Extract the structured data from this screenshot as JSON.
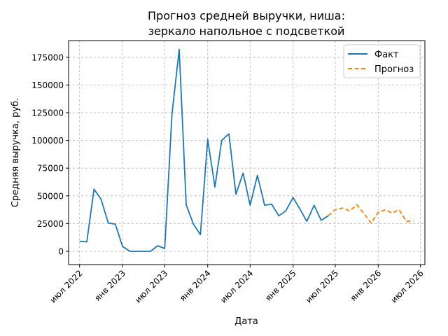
{
  "chart_data": {
    "type": "line",
    "title_line1": "Прогноз средней выручки, ниша:",
    "title_line2": "зеркало напольное с подсветкой",
    "xlabel": "Дата",
    "ylabel": "Средняя выручка, руб.",
    "x_domain": [
      "2022-05-15",
      "2026-07-20"
    ],
    "ylim": [
      -12000,
      190000
    ],
    "grid": true,
    "legend_position": "top-right",
    "x_ticks": [
      {
        "date": "2022-07-01",
        "label": "июл 2022"
      },
      {
        "date": "2023-01-01",
        "label": "янв 2023"
      },
      {
        "date": "2023-07-01",
        "label": "июл 2023"
      },
      {
        "date": "2024-01-01",
        "label": "янв 2024"
      },
      {
        "date": "2024-07-01",
        "label": "июл 2024"
      },
      {
        "date": "2025-01-01",
        "label": "янв 2025"
      },
      {
        "date": "2025-07-01",
        "label": "июл 2025"
      },
      {
        "date": "2026-01-01",
        "label": "янв 2026"
      },
      {
        "date": "2026-07-01",
        "label": "июл 2026"
      }
    ],
    "y_ticks": [
      {
        "value": 0,
        "label": "0"
      },
      {
        "value": 25000,
        "label": "25000"
      },
      {
        "value": 50000,
        "label": "50000"
      },
      {
        "value": 75000,
        "label": "75000"
      },
      {
        "value": 100000,
        "label": "100000"
      },
      {
        "value": 125000,
        "label": "125000"
      },
      {
        "value": 150000,
        "label": "150000"
      },
      {
        "value": 175000,
        "label": "175000"
      }
    ],
    "series": [
      {
        "name": "Факт",
        "color": "#1f77b4",
        "dash": "solid",
        "points": [
          [
            "2022-07-01",
            9000
          ],
          [
            "2022-08-01",
            8500
          ],
          [
            "2022-09-01",
            56000
          ],
          [
            "2022-10-01",
            47000
          ],
          [
            "2022-11-01",
            25500
          ],
          [
            "2022-12-01",
            24500
          ],
          [
            "2023-01-01",
            4500
          ],
          [
            "2023-02-01",
            0
          ],
          [
            "2023-03-01",
            0
          ],
          [
            "2023-04-01",
            0
          ],
          [
            "2023-05-01",
            0
          ],
          [
            "2023-06-01",
            5000
          ],
          [
            "2023-07-01",
            2500
          ],
          [
            "2023-08-01",
            124000
          ],
          [
            "2023-09-01",
            182000
          ],
          [
            "2023-10-01",
            42000
          ],
          [
            "2023-11-01",
            24500
          ],
          [
            "2023-12-01",
            15000
          ],
          [
            "2024-01-01",
            101000
          ],
          [
            "2024-02-01",
            58000
          ],
          [
            "2024-03-01",
            100000
          ],
          [
            "2024-04-01",
            106000
          ],
          [
            "2024-05-01",
            51500
          ],
          [
            "2024-06-01",
            70500
          ],
          [
            "2024-07-01",
            41500
          ],
          [
            "2024-08-01",
            68500
          ],
          [
            "2024-09-01",
            41500
          ],
          [
            "2024-10-01",
            42500
          ],
          [
            "2024-11-01",
            32000
          ],
          [
            "2024-12-01",
            36500
          ],
          [
            "2025-01-01",
            48500
          ],
          [
            "2025-02-01",
            37500
          ],
          [
            "2025-03-01",
            27000
          ],
          [
            "2025-04-01",
            41500
          ],
          [
            "2025-05-01",
            28000
          ],
          [
            "2025-06-01",
            32000
          ]
        ]
      },
      {
        "name": "Прогноз",
        "color": "#ff7f0e",
        "dash": "dashed",
        "points": [
          [
            "2025-06-01",
            32000
          ],
          [
            "2025-07-01",
            37500
          ],
          [
            "2025-08-01",
            39000
          ],
          [
            "2025-09-01",
            36500
          ],
          [
            "2025-10-01",
            42000
          ],
          [
            "2025-11-01",
            34000
          ],
          [
            "2025-12-01",
            25500
          ],
          [
            "2026-01-01",
            35000
          ],
          [
            "2026-02-01",
            37500
          ],
          [
            "2026-03-01",
            34500
          ],
          [
            "2026-04-01",
            37500
          ],
          [
            "2026-05-01",
            27000
          ],
          [
            "2026-06-01",
            27500
          ]
        ]
      }
    ]
  }
}
